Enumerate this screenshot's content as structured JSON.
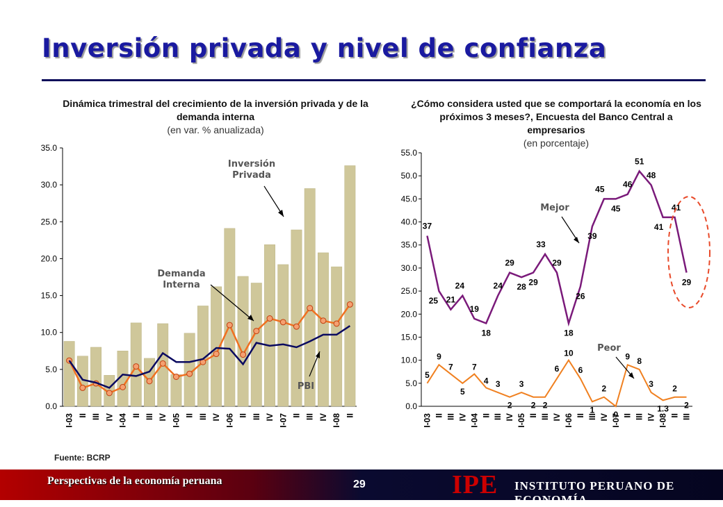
{
  "page": {
    "title": "Inversión privada y nivel de confianza",
    "source": "Fuente: BCRP",
    "footer_text": "Perspectivas de la economía peruana",
    "page_number": "29",
    "logo": "IPE",
    "institute": "INSTITUTO PERUANO DE ECONOMÍA",
    "colors": {
      "title": "#1a1aa0",
      "bars": "#cfc79a",
      "demanda": "#f07020",
      "pbi": "#0a0a60",
      "mejor": "#7a1a7a",
      "peor": "#f08020",
      "highlight": "#e84a2a"
    }
  },
  "left_chart_header": {
    "title": "Dinámica trimestral del crecimiento de la inversión privada y de la demanda interna",
    "subtitle": "(en var. % anualizada)"
  },
  "right_chart_header": {
    "title": "¿Cómo considera usted que se comportará la economía en los próximos 3 meses?, Encuesta del Banco Central a empresarios",
    "subtitle": "(en porcentaje)"
  },
  "chart_data": [
    {
      "type": "bar",
      "categories": [
        "I-03",
        "II",
        "III",
        "IV",
        "I-04",
        "II",
        "III",
        "IV",
        "I-05",
        "II",
        "III",
        "IV",
        "I-06",
        "II",
        "III",
        "IV",
        "I-07",
        "II",
        "III",
        "IV",
        "I-08",
        "II"
      ],
      "yticks": [
        "0.0",
        "5.0",
        "10.0",
        "15.0",
        "20.0",
        "25.0",
        "30.0",
        "35.0"
      ],
      "ylim": [
        0,
        35
      ],
      "series": [
        {
          "name": "Inversión Privada",
          "kind": "bar",
          "values": [
            8.8,
            6.8,
            8.0,
            4.2,
            7.5,
            11.3,
            6.5,
            11.2,
            4.3,
            9.9,
            13.6,
            16.2,
            24.1,
            17.6,
            16.7,
            21.9,
            19.2,
            23.9,
            29.5,
            20.8,
            18.9,
            32.6
          ]
        },
        {
          "name": "Demanda Interna",
          "kind": "line",
          "values": [
            6.2,
            2.5,
            3.1,
            1.8,
            2.6,
            5.4,
            3.4,
            5.8,
            4.0,
            4.4,
            6.0,
            7.1,
            11.0,
            7.0,
            10.2,
            11.9,
            11.4,
            10.8,
            13.3,
            11.6,
            11.2,
            13.8
          ]
        },
        {
          "name": "PBI",
          "kind": "line",
          "values": [
            6.2,
            3.6,
            3.2,
            2.5,
            4.3,
            4.1,
            4.7,
            7.2,
            6.0,
            6.0,
            6.4,
            7.9,
            7.8,
            5.7,
            8.6,
            8.2,
            8.4,
            8.0,
            8.8,
            9.7,
            9.7,
            10.9
          ]
        }
      ]
    },
    {
      "type": "line",
      "categories": [
        "I-03",
        "II",
        "III",
        "IV",
        "I-04",
        "II",
        "III",
        "IV",
        "I-05",
        "II",
        "III",
        "IV",
        "I-06",
        "II",
        "III",
        "IV",
        "I-07",
        "II",
        "III",
        "IV",
        "I-08",
        "II",
        "III"
      ],
      "yticks": [
        "0.0",
        "5.0",
        "10.0",
        "15.0",
        "20.0",
        "25.0",
        "30.0",
        "35.0",
        "40.0",
        "45.0",
        "50.0",
        "55.0"
      ],
      "ylim": [
        0,
        55
      ],
      "series": [
        {
          "name": "Mejor",
          "values": [
            37,
            25,
            21,
            24,
            19,
            18,
            24,
            29,
            28,
            29,
            33,
            29,
            18,
            26,
            39,
            45,
            45,
            46,
            51,
            48,
            41,
            41,
            29
          ],
          "labels": [
            "37",
            "25",
            "21",
            "24",
            "19",
            "18",
            "24",
            "29",
            "28",
            "29",
            "33",
            "29",
            "18",
            "26",
            "39",
            "45",
            "45",
            "46",
            "51",
            "48",
            "41",
            "41",
            "29"
          ]
        },
        {
          "name": "Peor",
          "values": [
            5,
            9,
            7,
            5,
            7,
            4,
            3,
            2,
            3,
            2,
            2,
            6,
            10,
            6,
            1,
            2,
            0,
            9,
            8,
            3,
            1.3,
            2,
            2
          ],
          "labels": [
            "5",
            "9",
            "7",
            "5",
            "7",
            "4",
            "3",
            "2",
            "3",
            "2",
            "2",
            "6",
            "10",
            "6",
            "1",
            "2",
            "0",
            "9",
            "8",
            "3",
            "1.3",
            "2",
            "2"
          ]
        }
      ]
    }
  ]
}
